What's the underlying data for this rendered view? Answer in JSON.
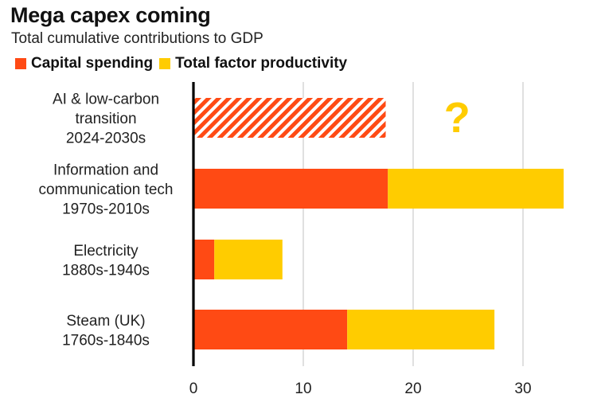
{
  "chart_data": {
    "type": "bar",
    "orientation": "horizontal",
    "stacked": true,
    "title": "Mega capex coming",
    "subtitle": "Total cumulative contributions to GDP",
    "legend_position": "top-left",
    "categories": [
      {
        "lines": [
          "AI & low-carbon",
          "transition",
          "2024-2030s"
        ]
      },
      {
        "lines": [
          "Information and",
          "communication tech",
          "1970s-2010s"
        ]
      },
      {
        "lines": [
          "Electricity",
          "1880s-1940s"
        ]
      },
      {
        "lines": [
          "Steam (UK)",
          "1760s-1840s"
        ]
      }
    ],
    "series": [
      {
        "name": "Capital spending",
        "color": "#FF4A14",
        "values": [
          17.5,
          17.7,
          1.9,
          14.0
        ],
        "hatched": [
          true,
          false,
          false,
          false
        ]
      },
      {
        "name": "Total factor productivity",
        "color": "#FFCC00",
        "values": [
          null,
          16.0,
          6.2,
          13.4
        ]
      }
    ],
    "annotations": [
      {
        "category_index": 0,
        "text": "?",
        "x_value": 24,
        "color": "#FFCC00"
      }
    ],
    "xlim": [
      0,
      33.5
    ],
    "xticks": [
      0,
      10,
      20,
      30
    ],
    "grid": "vertical",
    "xlabel": "",
    "ylabel": ""
  }
}
